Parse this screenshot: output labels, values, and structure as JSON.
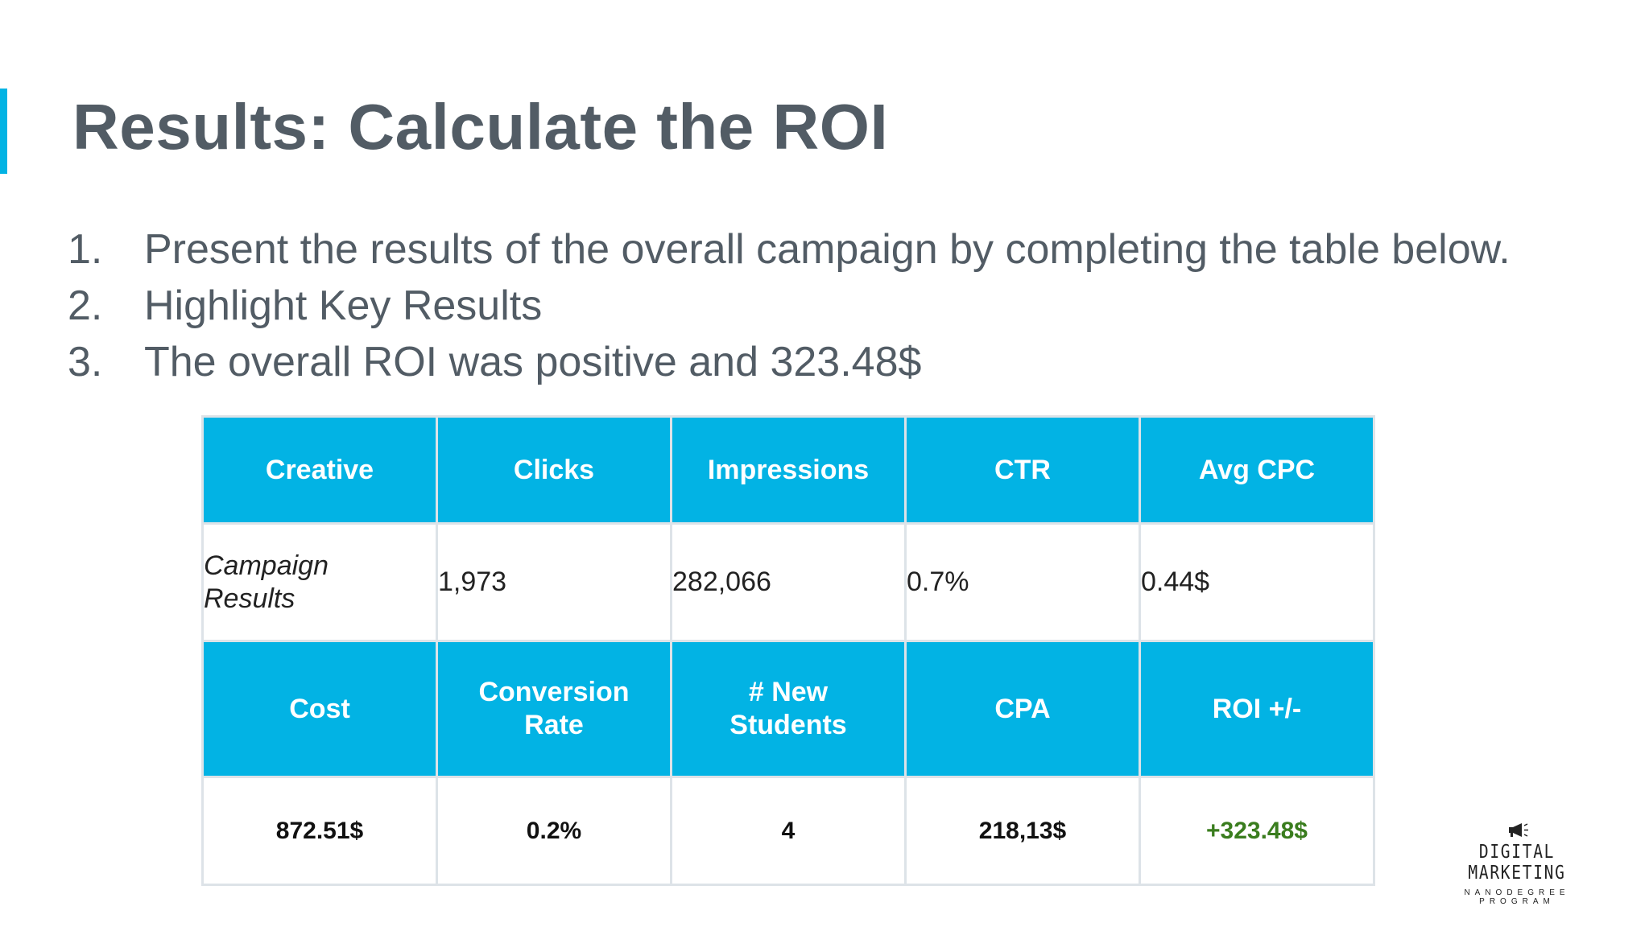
{
  "slide": {
    "title": "Results: Calculate the ROI",
    "steps": [
      {
        "num": "1.",
        "text": "Present the results of the overall campaign by completing the table below."
      },
      {
        "num": "2.",
        "text": "Highlight Key Results"
      },
      {
        "num": "3.",
        "text": "The overall ROI was positive and 323.48$"
      }
    ]
  },
  "table": {
    "header1": [
      "Creative",
      "Clicks",
      "Impressions",
      "CTR",
      "Avg CPC"
    ],
    "row1": [
      "Campaign Results",
      "1,973",
      "282,066",
      "0.7%",
      "0.44$"
    ],
    "header2": [
      "Cost",
      "Conversion Rate",
      "# New Students",
      "CPA",
      "ROI +/-"
    ],
    "row2": [
      "872.51$",
      "0.2%",
      "4",
      "218,13$",
      "+323.48$"
    ]
  },
  "logo": {
    "brand": "DIGITAL MARKETING",
    "sub": "NANODEGREE PROGRAM",
    "icon": "megaphone-icon"
  },
  "colors": {
    "accent": "#02b3e4",
    "title": "#525c65",
    "roi_positive": "#3a7d1e"
  }
}
